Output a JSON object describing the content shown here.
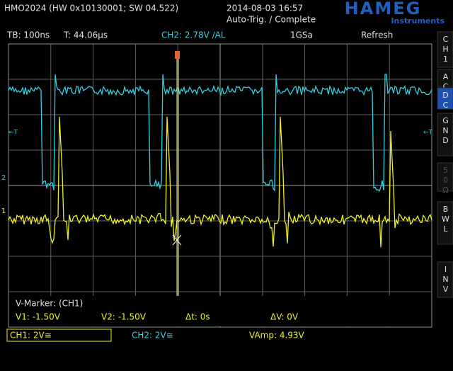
{
  "header": {
    "device": "HMO2024 (HW 0x10130001; SW 04.522)",
    "datetime": "2014-08-03 16:57",
    "status": "Auto-Trig. / Complete",
    "logo": "HAMEG",
    "logo_sub": "Instruments"
  },
  "info_bar": {
    "timebase": "TB: 100ns",
    "trigger_time": "T: 44.06µs",
    "ch2": "CH2: 2.78V ∕AL",
    "sample_rate": "1GSa",
    "mode": "Refresh"
  },
  "side_menu": [
    "CH1",
    "AC",
    "DC",
    "GND",
    "50Ω",
    "BWL",
    "INV"
  ],
  "screen_markers": {
    "ch1": "1",
    "ch2": "2",
    "trigger_left": "←T",
    "trigger_right": "←T"
  },
  "marker": {
    "title": "V-Marker: (CH1)",
    "v1": "V1: -1.50V",
    "v2": "V2: -1.50V",
    "dt": "Δt: 0s",
    "dv": "ΔV: 0V"
  },
  "footer": {
    "ch1": "CH1: 2V≅",
    "ch2": "CH2: 2V≅",
    "vamp": "VAmp: 4.93V"
  }
}
